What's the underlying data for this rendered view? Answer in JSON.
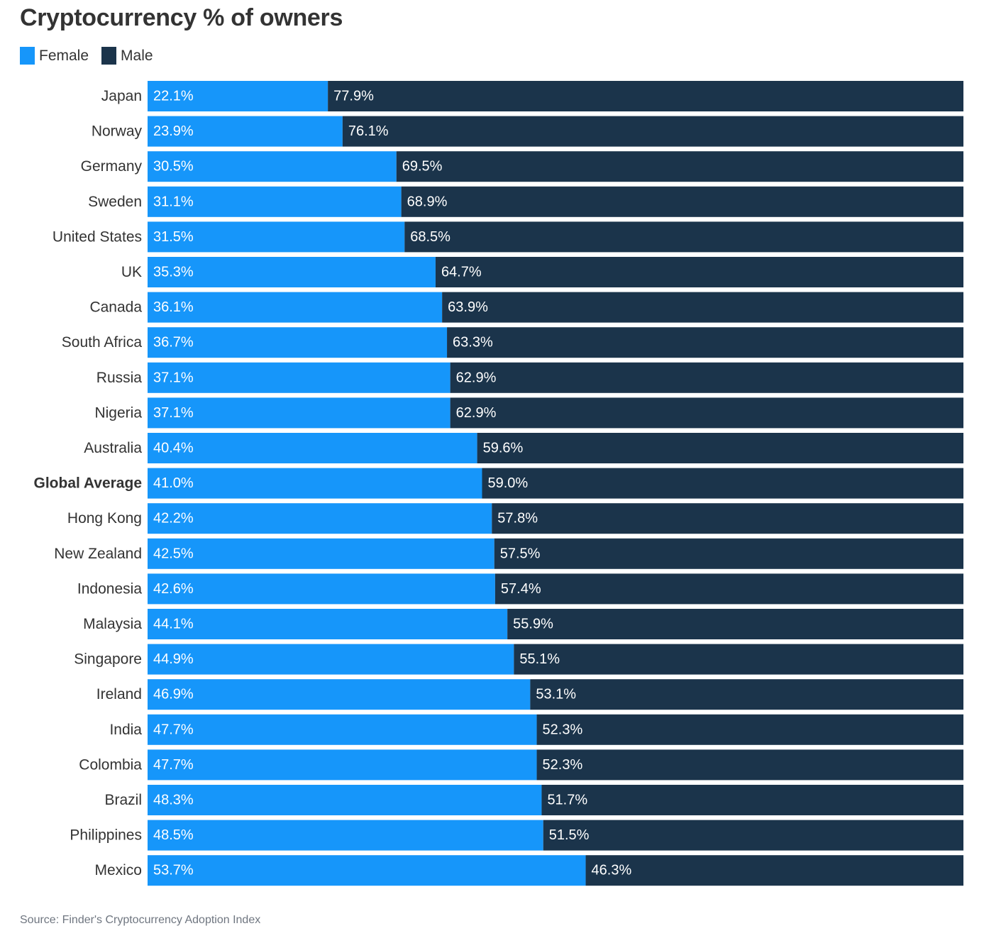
{
  "chart_data": {
    "type": "bar",
    "orientation": "horizontal",
    "stacked": true,
    "title": "Cryptocurrency % of owners",
    "legend_position": "top-left",
    "categories": [
      "Japan",
      "Norway",
      "Germany",
      "Sweden",
      "United States",
      "UK",
      "Canada",
      "South Africa",
      "Russia",
      "Nigeria",
      "Australia",
      "Global Average",
      "Hong Kong",
      "New Zealand",
      "Indonesia",
      "Malaysia",
      "Singapore",
      "Ireland",
      "India",
      "Colombia",
      "Brazil",
      "Philippines",
      "Mexico"
    ],
    "emphasized_category": "Global Average",
    "series": [
      {
        "name": "Female",
        "color": "#1696fa",
        "values": [
          22.1,
          23.9,
          30.5,
          31.1,
          31.5,
          35.3,
          36.1,
          36.7,
          37.1,
          37.1,
          40.4,
          41.0,
          42.2,
          42.5,
          42.6,
          44.1,
          44.9,
          46.9,
          47.7,
          47.7,
          48.3,
          48.5,
          53.7
        ],
        "labels": [
          "22.1%",
          "23.9%",
          "30.5%",
          "31.1%",
          "31.5%",
          "35.3%",
          "36.1%",
          "36.7%",
          "37.1%",
          "37.1%",
          "40.4%",
          "41.0%",
          "42.2%",
          "42.5%",
          "42.6%",
          "44.1%",
          "44.9%",
          "46.9%",
          "47.7%",
          "47.7%",
          "48.3%",
          "48.5%",
          "53.7%"
        ]
      },
      {
        "name": "Male",
        "color": "#1b344b",
        "values": [
          77.9,
          76.1,
          69.5,
          68.9,
          68.5,
          64.7,
          63.9,
          63.3,
          62.9,
          62.9,
          59.6,
          59.0,
          57.8,
          57.5,
          57.4,
          55.9,
          55.1,
          53.1,
          52.3,
          52.3,
          51.7,
          51.5,
          46.3
        ],
        "labels": [
          "77.9%",
          "76.1%",
          "69.5%",
          "68.9%",
          "68.5%",
          "64.7%",
          "63.9%",
          "63.3%",
          "62.9%",
          "62.9%",
          "59.6%",
          "59.0%",
          "57.8%",
          "57.5%",
          "57.4%",
          "55.9%",
          "55.1%",
          "53.1%",
          "52.3%",
          "52.3%",
          "51.7%",
          "51.5%",
          "46.3%"
        ]
      }
    ],
    "xlim": [
      0,
      100
    ],
    "grid": false
  },
  "source": "Source: Finder's Cryptocurrency Adoption Index"
}
